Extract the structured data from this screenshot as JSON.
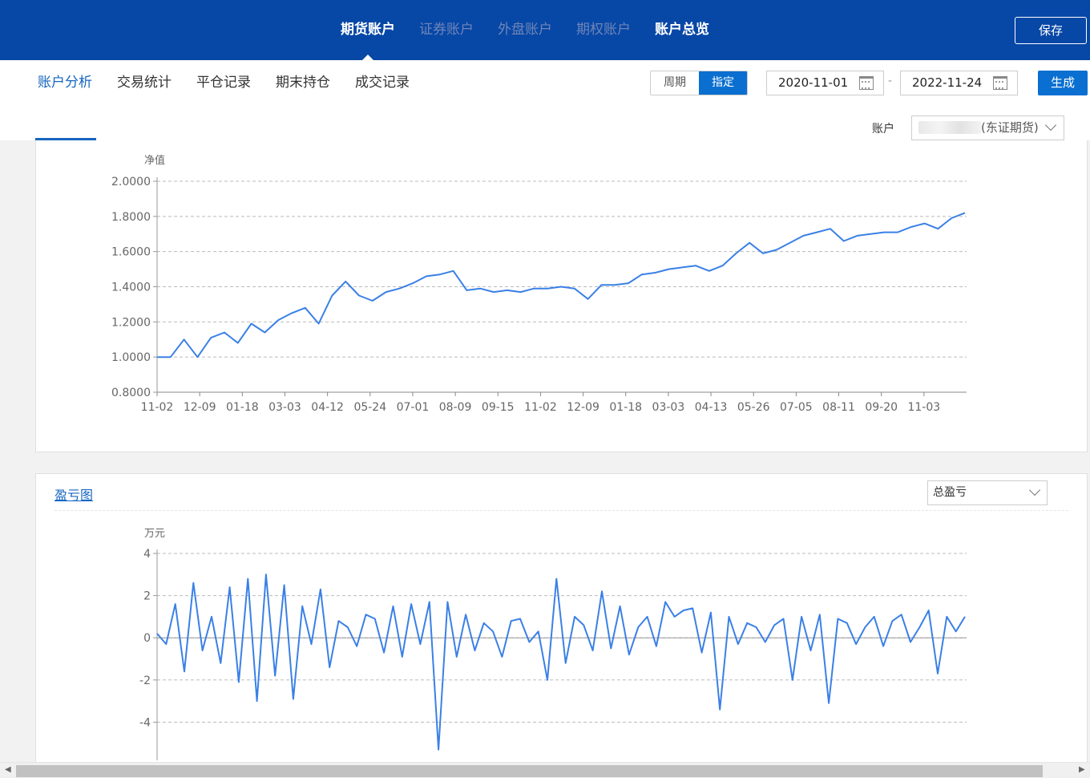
{
  "topnav": {
    "tabs": [
      {
        "label": "期货账户",
        "state": "active"
      },
      {
        "label": "证券账户",
        "state": "dim"
      },
      {
        "label": "外盘账户",
        "state": "dim"
      },
      {
        "label": "期权账户",
        "state": "dim"
      },
      {
        "label": "账户总览",
        "state": "bright"
      }
    ],
    "save_label": "保存"
  },
  "subnav": {
    "tabs": [
      "账户分析",
      "交易统计",
      "平仓记录",
      "期末持仓",
      "成交记录"
    ],
    "active_index": 0
  },
  "filters": {
    "period_label": "周期",
    "custom_label": "指定",
    "start_date": "2020-11-01",
    "end_date": "2022-11-24",
    "date_separator": "-",
    "generate_label": "生成",
    "account_label": "账户",
    "account_value": "(东证期货)"
  },
  "pnl_panel": {
    "title": "盈亏图",
    "select_value": "总盈亏"
  },
  "colors": {
    "brand": "#0747a6",
    "accent": "#0a6fd1",
    "line": "#3a80e6"
  },
  "chart_data": [
    {
      "type": "line",
      "ylabel": "净值",
      "ylim": [
        0.8,
        2.0
      ],
      "yticks": [
        "2.0000",
        "1.8000",
        "1.6000",
        "1.4000",
        "1.2000",
        "1.0000",
        "0.8000"
      ],
      "xticks": [
        "11-02",
        "12-09",
        "01-18",
        "03-03",
        "04-12",
        "05-24",
        "07-01",
        "08-09",
        "09-15",
        "11-02",
        "12-09",
        "01-18",
        "03-03",
        "04-13",
        "05-26",
        "07-05",
        "08-11",
        "09-20",
        "11-03"
      ],
      "grid": true,
      "values": [
        1.0,
        1.0,
        1.1,
        1.0,
        1.11,
        1.14,
        1.08,
        1.19,
        1.14,
        1.21,
        1.25,
        1.28,
        1.19,
        1.35,
        1.43,
        1.35,
        1.32,
        1.37,
        1.39,
        1.42,
        1.46,
        1.47,
        1.49,
        1.38,
        1.39,
        1.37,
        1.38,
        1.37,
        1.39,
        1.39,
        1.4,
        1.39,
        1.33,
        1.41,
        1.41,
        1.42,
        1.47,
        1.48,
        1.5,
        1.51,
        1.52,
        1.49,
        1.52,
        1.59,
        1.65,
        1.59,
        1.61,
        1.65,
        1.69,
        1.71,
        1.73,
        1.66,
        1.69,
        1.7,
        1.71,
        1.71,
        1.74,
        1.76,
        1.73,
        1.79,
        1.82
      ]
    },
    {
      "type": "line",
      "ylabel": "万元",
      "ylim": [
        -6,
        4
      ],
      "yticks": [
        "4",
        "2",
        "0",
        "-2",
        "-4"
      ],
      "grid": true,
      "values": [
        0.2,
        -0.3,
        1.6,
        -1.6,
        2.6,
        -0.6,
        1.0,
        -1.2,
        2.4,
        -2.1,
        2.8,
        -3.0,
        3.0,
        -1.8,
        2.5,
        -2.9,
        1.5,
        -0.3,
        2.3,
        -1.4,
        0.8,
        0.5,
        -0.4,
        1.1,
        0.9,
        -0.7,
        1.5,
        -0.9,
        1.6,
        -0.3,
        1.7,
        -5.3,
        1.7,
        -0.9,
        1.1,
        -0.6,
        0.7,
        0.3,
        -0.9,
        0.8,
        0.9,
        -0.2,
        0.3,
        -2.0,
        2.8,
        -1.2,
        1.0,
        0.6,
        -0.6,
        2.2,
        -0.5,
        1.5,
        -0.8,
        0.5,
        1.0,
        -0.4,
        1.7,
        1.0,
        1.3,
        1.4,
        -0.7,
        1.2,
        -3.4,
        1.0,
        -0.3,
        0.7,
        0.5,
        -0.2,
        0.6,
        0.9,
        -2.0,
        1.0,
        -0.6,
        1.1,
        -3.1,
        0.9,
        0.7,
        -0.3,
        0.5,
        1.0,
        -0.4,
        0.8,
        1.1,
        -0.2,
        0.5,
        1.3,
        -1.7,
        1.0,
        0.3,
        1.0
      ]
    }
  ]
}
